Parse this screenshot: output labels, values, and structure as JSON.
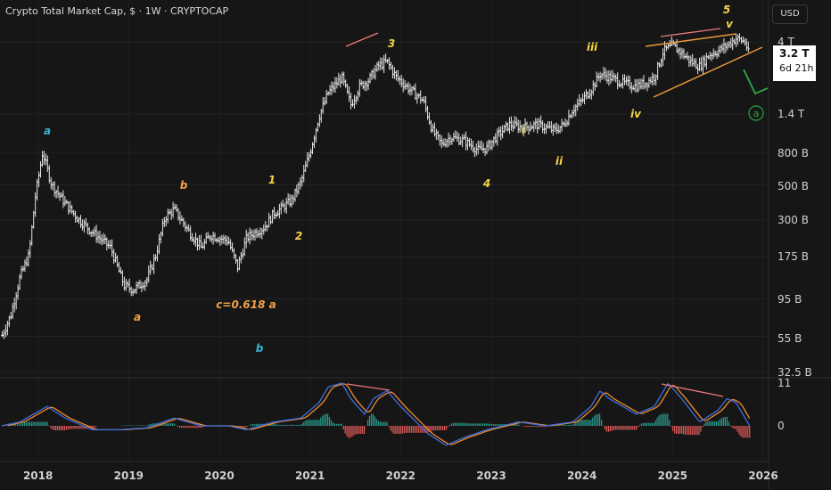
{
  "header": {
    "title": "Crypto Total Market Cap, $ · 1W · CRYPTOCAP",
    "currency_button": "USD"
  },
  "price_label": {
    "value": "3.2 T",
    "countdown": "6d 21h"
  },
  "colors": {
    "background": "#161616",
    "candle": "#e6e6e6",
    "wave_yellow": "#f5d547",
    "wave_orange": "#f0a04b",
    "wave_cyan": "#35b6d6",
    "divergence": "#e87a7a",
    "channel": "#e89a3c",
    "projection": "#2ea043",
    "macd": "#3d6fe0",
    "signal": "#f08a2c",
    "hist_up": "#2a9d8f",
    "hist_down": "#e05a5a"
  },
  "chart_data": [
    {
      "type": "line",
      "title": "Crypto Total Market Cap, $ · 1W · CRYPTOCAP",
      "scale": "log",
      "y_tick_labels": [
        "4 T",
        "1.4 T",
        "800 B",
        "500 B",
        "300 B",
        "175 B",
        "95 B",
        "55 B",
        "32.5 B"
      ],
      "x_tick_labels": [
        "2018",
        "2019",
        "2020",
        "2021",
        "2022",
        "2023",
        "2024",
        "2025",
        "2026"
      ],
      "x_range": [
        2017.6,
        2026.0
      ],
      "series": [
        {
          "x": [
            2017.6,
            2017.7,
            2017.8,
            2017.9,
            2017.97,
            2018.05,
            2018.15,
            2018.3,
            2018.45,
            2018.6,
            2018.8,
            2018.95,
            2019.05,
            2019.2,
            2019.3,
            2019.4,
            2019.5,
            2019.65,
            2019.8,
            2019.9,
            2020.0,
            2020.1,
            2020.2,
            2020.3,
            2020.4,
            2020.5,
            2020.6,
            2020.7,
            2020.8,
            2020.9,
            2021.0,
            2021.1,
            2021.2,
            2021.3,
            2021.35,
            2021.45,
            2021.55,
            2021.65,
            2021.75,
            2021.85,
            2021.95,
            2022.1,
            2022.25,
            2022.35,
            2022.45,
            2022.55,
            2022.7,
            2022.85,
            2022.95,
            2023.05,
            2023.2,
            2023.35,
            2023.5,
            2023.6,
            2023.7,
            2023.8,
            2023.9,
            2024.0,
            2024.1,
            2024.2,
            2024.3,
            2024.45,
            2024.6,
            2024.7,
            2024.8,
            2024.9,
            2025.0,
            2025.1,
            2025.2,
            2025.3,
            2025.4,
            2025.5,
            2025.6,
            2025.7,
            2025.8,
            2025.85
          ],
          "y": [
            55,
            75,
            130,
            180,
            420,
            800,
            500,
            380,
            300,
            250,
            200,
            115,
            108,
            125,
            180,
            310,
            350,
            260,
            200,
            240,
            230,
            220,
            150,
            230,
            250,
            270,
            330,
            360,
            400,
            520,
            800,
            1350,
            1900,
            2200,
            2400,
            1600,
            2100,
            2300,
            2800,
            3000,
            2400,
            2000,
            1700,
            1100,
            900,
            1000,
            950,
            830,
            850,
            1000,
            1200,
            1150,
            1200,
            1150,
            1100,
            1200,
            1500,
            1700,
            2000,
            2500,
            2400,
            2200,
            2100,
            2200,
            2400,
            3500,
            3800,
            3400,
            3000,
            2800,
            3300,
            3500,
            3800,
            4200,
            4000,
            3200
          ]
        }
      ]
    },
    {
      "type": "line",
      "title": "",
      "y_tick_labels": [
        "11",
        "0"
      ],
      "series": [
        {
          "x": [
            2017.6,
            2017.8,
            2017.95,
            2018.1,
            2018.3,
            2018.6,
            2018.9,
            2019.2,
            2019.5,
            2019.8,
            2020.1,
            2020.3,
            2020.6,
            2020.9,
            2021.1,
            2021.2,
            2021.35,
            2021.45,
            2021.6,
            2021.7,
            2021.85,
            2022.0,
            2022.3,
            2022.5,
            2022.7,
            2022.95,
            2023.3,
            2023.6,
            2023.9,
            2024.1,
            2024.2,
            2024.3,
            2024.45,
            2024.6,
            2024.8,
            2024.95,
            2025.1,
            2025.3,
            2025.5,
            2025.6,
            2025.7,
            2025.85
          ],
          "y": [
            0,
            1,
            3,
            5,
            2,
            -1,
            -1,
            -0.5,
            2,
            0,
            0,
            -1,
            1,
            2,
            6,
            10,
            11,
            7,
            3,
            7,
            9,
            5,
            -2,
            -5,
            -3,
            -1,
            1,
            0,
            1,
            5,
            9,
            7,
            5,
            3,
            5,
            11,
            7,
            1,
            4,
            7,
            6,
            0
          ]
        }
      ]
    }
  ],
  "annotations": {
    "wave_a": "a",
    "wave_b": "b",
    "wave_a2": "a",
    "wave_c": "c=0.618 a",
    "wave_b2": "b",
    "wave_1": "1",
    "wave_2": "2",
    "wave_3": "3",
    "wave_4": "4",
    "wave_i": "i",
    "wave_ii": "ii",
    "wave_iii": "iii",
    "wave_iv": "iv",
    "wave_v": "v",
    "wave_5": "5",
    "circled_a": "a"
  }
}
